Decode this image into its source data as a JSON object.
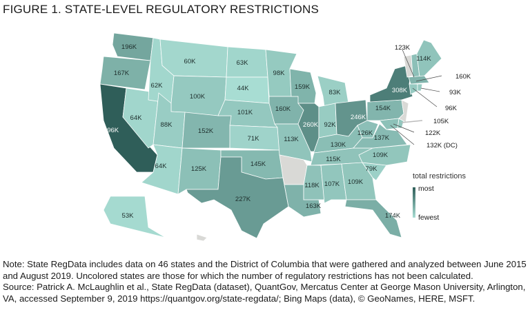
{
  "title": "FIGURE 1. STATE-LEVEL REGULATORY RESTRICTIONS",
  "legend": {
    "title": "total restrictions",
    "most": "most",
    "fewest": "fewest",
    "color_most": "#2f5e59",
    "color_fewest": "#a8ddd3",
    "color_uncolored": "#d9d9d6"
  },
  "states": {
    "WA": "196K",
    "OR": "167K",
    "CA": "396K",
    "NV": "64K",
    "ID": "62K",
    "MT": "60K",
    "WY": "100K",
    "UT": "88K",
    "AZ": "64K",
    "CO": "152K",
    "NM": "125K",
    "ND": "63K",
    "SD": "44K",
    "NE": "101K",
    "KS": "71K",
    "OK": "145K",
    "TX": "227K",
    "MN": "98K",
    "IA": "160K",
    "MO": "113K",
    "LA": "163K",
    "WI": "159K",
    "IL": "260K",
    "MI": "83K",
    "IN": "92K",
    "OH": "246K",
    "KY": "130K",
    "TN": "115K",
    "MS": "118K",
    "AL": "107K",
    "GA": "109K",
    "FL": "174K",
    "SC": "79K",
    "NC": "109K",
    "VA": "137K",
    "WV": "126K",
    "PA": "154K",
    "NY": "308K",
    "ME": "114K",
    "NH": "123K",
    "MA": "160K",
    "RI": "93K",
    "CT": "96K",
    "DE": "105K",
    "MD": "122K",
    "DC": "132K (DC)",
    "AK": "53K"
  },
  "note": "Note: State RegData includes data on 46 states and the District of Columbia that were gathered and analyzed between June 2015 and August 2019. Uncolored states are those for which the number of regulatory restrictions has not been calculated.",
  "source": "Source: Patrick A. McLaughlin et al., State RegData (dataset), QuantGov, Mercatus Center at George Mason University, Arlington, VA, accessed September 9, 2019 https://quantgov.org/state-regdata/; Bing Maps (data), © GeoNames, HERE, MSFT."
}
